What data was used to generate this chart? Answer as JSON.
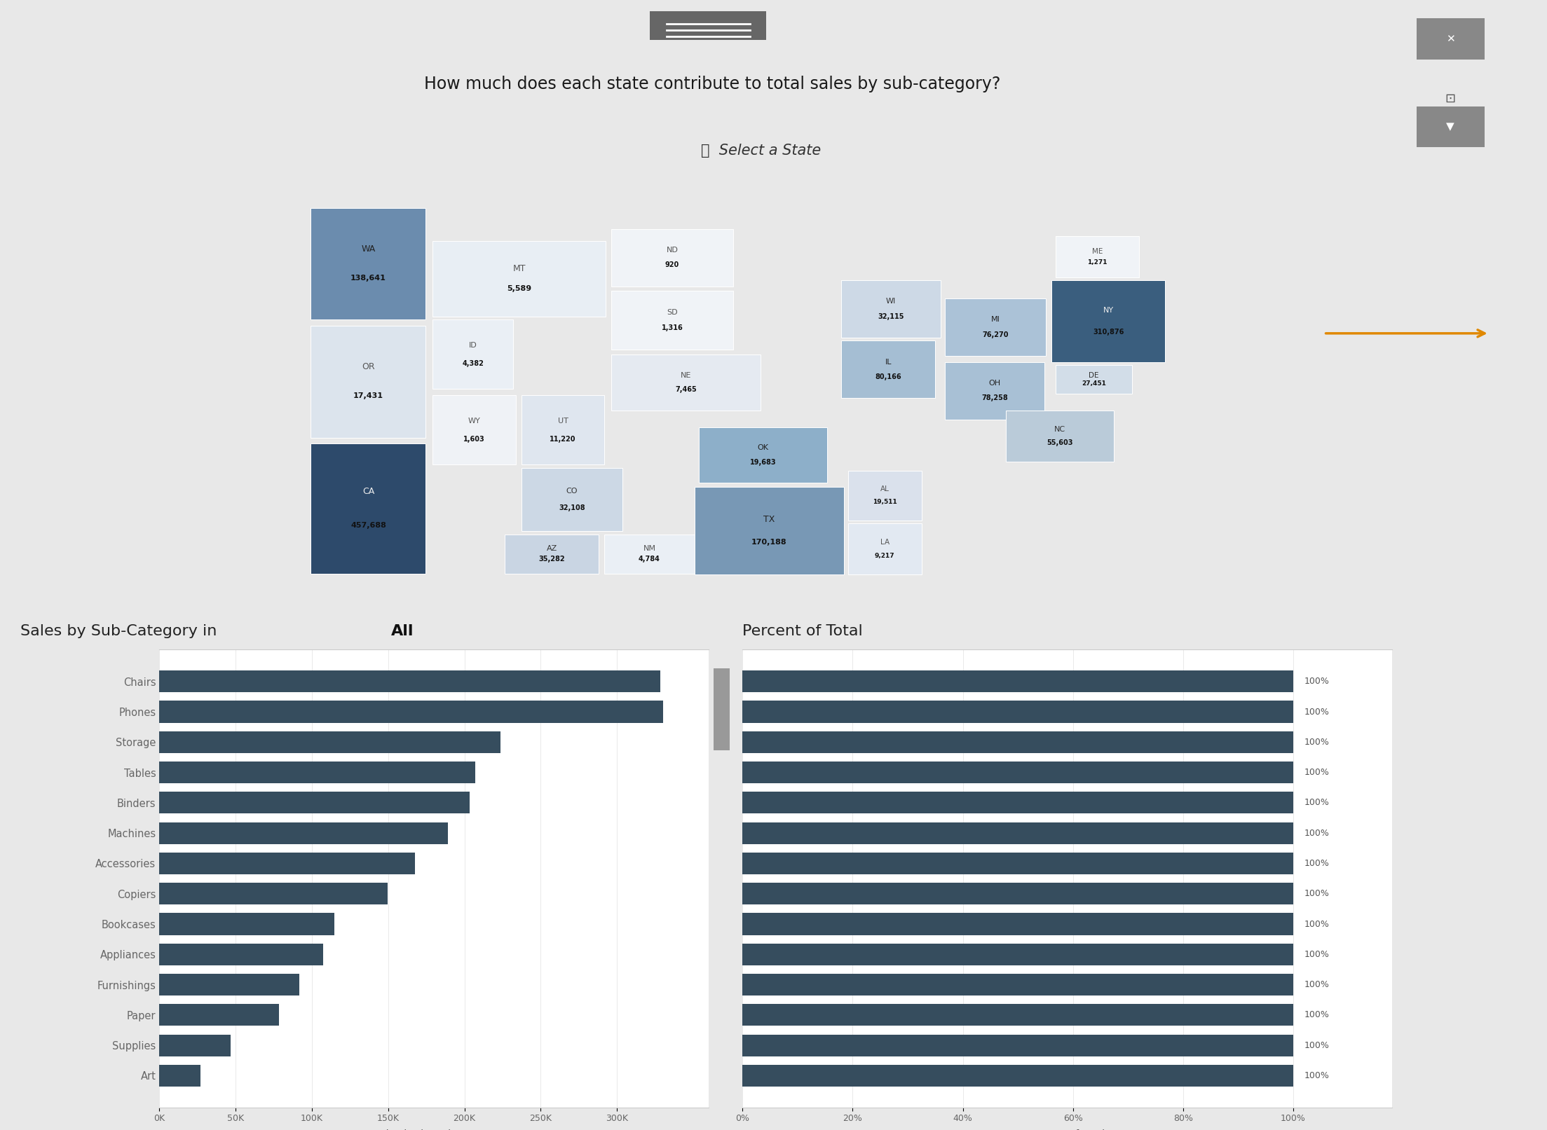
{
  "title": "How much does each state contribute to total sales by sub-category?",
  "subtitle": "👍  Select a State",
  "bg_color": "#e8e8e8",
  "panel_bg": "#ffffff",
  "panel_border": "#555555",
  "bar_chart_title_normal": "Sales by Sub-Category in ",
  "bar_chart_title_bold": "All",
  "percent_chart_title": "Percent of Total",
  "categories": [
    "Chairs",
    "Phones",
    "Storage",
    "Tables",
    "Binders",
    "Machines",
    "Accessories",
    "Copiers",
    "Bookcases",
    "Appliances",
    "Furnishings",
    "Paper",
    "Supplies",
    "Art"
  ],
  "sales_values": [
    328449,
    330007,
    223844,
    206966,
    203413,
    189239,
    167380,
    149528,
    114880,
    107532,
    91705,
    78479,
    46674,
    27119
  ],
  "percent_values": [
    100,
    100,
    100,
    100,
    100,
    100,
    100,
    100,
    100,
    100,
    100,
    100,
    100,
    100
  ],
  "bar_color": "#364d5e",
  "bar_color_percent": "#364d5e",
  "states": {
    "WA": {
      "value": "138,641",
      "color": "#6b8cae",
      "text_color": "#222222"
    },
    "OR": {
      "value": "17,431",
      "color": "#dce4ed",
      "text_color": "#555555"
    },
    "CA": {
      "value": "457,688",
      "color": "#2d4a6b",
      "text_color": "#eeeeee"
    },
    "ID": {
      "value": "4,382",
      "color": "#eaeff5",
      "text_color": "#555555"
    },
    "WY": {
      "value": "1,603",
      "color": "#eff2f6",
      "text_color": "#555555"
    },
    "MT": {
      "value": "5,589",
      "color": "#e8eef4",
      "text_color": "#555555"
    },
    "ND": {
      "value": "920",
      "color": "#f0f3f7",
      "text_color": "#555555"
    },
    "SD": {
      "value": "1,316",
      "color": "#f0f3f7",
      "text_color": "#555555"
    },
    "NE": {
      "value": "7,465",
      "color": "#e5eaf1",
      "text_color": "#555555"
    },
    "UT": {
      "value": "11,220",
      "color": "#dfe6ef",
      "text_color": "#555555"
    },
    "CO": {
      "value": "32,108",
      "color": "#ccd8e5",
      "text_color": "#333333"
    },
    "AZ": {
      "value": "35,282",
      "color": "#c9d5e3",
      "text_color": "#333333"
    },
    "NM": {
      "value": "4,784",
      "color": "#eaeff5",
      "text_color": "#555555"
    },
    "OK": {
      "value": "19,683",
      "color": "#8dafc9",
      "text_color": "#222222"
    },
    "TX": {
      "value": "170,188",
      "color": "#7898b5",
      "text_color": "#222222"
    },
    "LA": {
      "value": "9,217",
      "color": "#e2e9f2",
      "text_color": "#555555"
    },
    "AL": {
      "value": "19,511",
      "color": "#dae1ec",
      "text_color": "#555555"
    },
    "WI": {
      "value": "32,115",
      "color": "#cdd9e6",
      "text_color": "#333333"
    },
    "IL": {
      "value": "80,166",
      "color": "#a5bed3",
      "text_color": "#222222"
    },
    "MI": {
      "value": "76,270",
      "color": "#abc2d7",
      "text_color": "#222222"
    },
    "OH": {
      "value": "78,258",
      "color": "#a8c0d5",
      "text_color": "#222222"
    },
    "NY": {
      "value": "310,876",
      "color": "#3a5e7e",
      "text_color": "#eeeeee"
    },
    "ME": {
      "value": "1,271",
      "color": "#f0f3f7",
      "text_color": "#555555"
    },
    "NC": {
      "value": "55,603",
      "color": "#bacbd9",
      "text_color": "#333333"
    },
    "DE": {
      "value": "27,451",
      "color": "#d2dde8",
      "text_color": "#333333"
    }
  },
  "arrow_color": "#e08800",
  "menu_color": "#666666",
  "scrollbar_bg": "#d8d8d8",
  "scrollbar_handle": "#999999"
}
